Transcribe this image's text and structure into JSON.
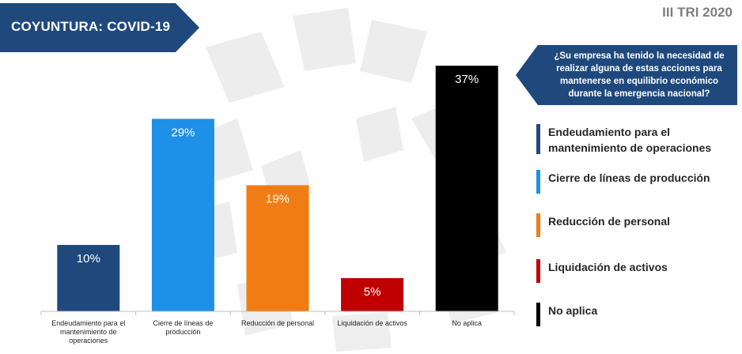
{
  "header": {
    "topic": "COYUNTURA: COVID-19",
    "period": "III TRI 2020"
  },
  "question": "¿Su empresa ha tenido la necesidad de realizar alguna de estas acciones para mantenerse en equilibrio económico durante la emergencia nacional?",
  "chart_data": {
    "type": "bar",
    "categories": [
      "Endeudamiento para el mantenimiento de operaciones",
      "Cierre de líneas de producción",
      "Reducción de personal",
      "Liquidación de activos",
      "No aplica"
    ],
    "values": [
      10,
      29,
      19,
      5,
      37
    ],
    "value_labels": [
      "10%",
      "29%",
      "19%",
      "5%",
      "37%"
    ],
    "colors": [
      "#1f497d",
      "#1e90e8",
      "#f07d14",
      "#c00000",
      "#000000"
    ],
    "legend": [
      "Endeudamiento para el mantenimiento de operaciones",
      "Cierre de líneas de producción",
      "Reducción de personal",
      "Liquidación de activos",
      "No aplica"
    ],
    "legend_position": "right",
    "ylim": [
      0,
      40
    ],
    "grid": false,
    "title": "",
    "xlabel": "",
    "ylabel": ""
  }
}
